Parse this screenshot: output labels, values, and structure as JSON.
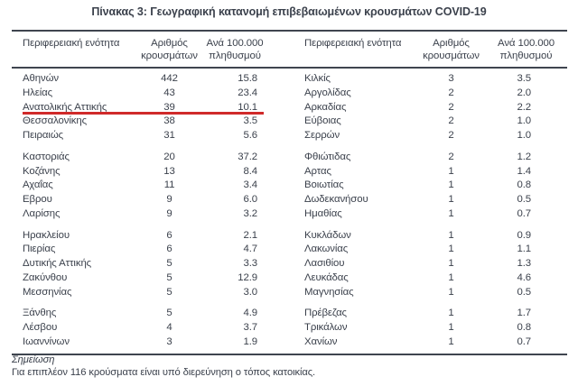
{
  "title": "Πίνακας 3: Γεωγραφική κατανομή επιβεβαιωμένων κρουσμάτων COVID-19",
  "table": {
    "headers": {
      "region": "Περιφερειακή ενότητα",
      "cases_line1": "Αριθμός",
      "cases_line2": "κρουσμάτων",
      "rate_line1": "Ανά 100.000",
      "rate_line2": "πληθυσμού"
    },
    "highlight": {
      "region": "Ανατολικής Αττικής",
      "color": "#d02a2a"
    },
    "row_groups": [
      {
        "left": [
          {
            "region": "Αθηνών",
            "cases": "442",
            "rate": "15.8"
          },
          {
            "region": "Ηλείας",
            "cases": "43",
            "rate": "23.4"
          },
          {
            "region": "Ανατολικής Αττικής",
            "cases": "39",
            "rate": "10.1"
          },
          {
            "region": "Θεσσαλονίκης",
            "cases": "38",
            "rate": "3.5"
          },
          {
            "region": "Πειραιώς",
            "cases": "31",
            "rate": "5.6"
          }
        ],
        "right": [
          {
            "region": "Κιλκίς",
            "cases": "3",
            "rate": "3.5"
          },
          {
            "region": "Αργολίδας",
            "cases": "2",
            "rate": "2.0"
          },
          {
            "region": "Αρκαδίας",
            "cases": "2",
            "rate": "2.2"
          },
          {
            "region": "Εύβοιας",
            "cases": "2",
            "rate": "1.0"
          },
          {
            "region": "Σερρών",
            "cases": "2",
            "rate": "1.0"
          }
        ]
      },
      {
        "left": [
          {
            "region": "Καστοριάς",
            "cases": "20",
            "rate": "37.2"
          },
          {
            "region": "Κοζάνης",
            "cases": "13",
            "rate": "8.4"
          },
          {
            "region": "Αχαΐας",
            "cases": "11",
            "rate": "3.4"
          },
          {
            "region": "Εβρου",
            "cases": "9",
            "rate": "6.0"
          },
          {
            "region": "Λαρίσης",
            "cases": "9",
            "rate": "3.2"
          }
        ],
        "right": [
          {
            "region": "Φθιώτιδας",
            "cases": "2",
            "rate": "1.2"
          },
          {
            "region": "Αρτας",
            "cases": "1",
            "rate": "1.4"
          },
          {
            "region": "Βοιωτίας",
            "cases": "1",
            "rate": "0.8"
          },
          {
            "region": "Δωδεκανήσου",
            "cases": "1",
            "rate": "0.5"
          },
          {
            "region": "Ημαθίας",
            "cases": "1",
            "rate": "0.7"
          }
        ]
      },
      {
        "left": [
          {
            "region": "Ηρακλείου",
            "cases": "6",
            "rate": "2.1"
          },
          {
            "region": "Πιερίας",
            "cases": "6",
            "rate": "4.7"
          },
          {
            "region": "Δυτικής Αττικής",
            "cases": "5",
            "rate": "3.3"
          },
          {
            "region": "Ζακύνθου",
            "cases": "5",
            "rate": "12.9"
          },
          {
            "region": "Μεσσηνίας",
            "cases": "5",
            "rate": "3.0"
          }
        ],
        "right": [
          {
            "region": "Κυκλάδων",
            "cases": "1",
            "rate": "0.9"
          },
          {
            "region": "Λακωνίας",
            "cases": "1",
            "rate": "1.1"
          },
          {
            "region": "Λασιθίου",
            "cases": "1",
            "rate": "1.3"
          },
          {
            "region": "Λευκάδας",
            "cases": "1",
            "rate": "4.6"
          },
          {
            "region": "Μαγνησίας",
            "cases": "1",
            "rate": "0.5"
          }
        ]
      },
      {
        "left": [
          {
            "region": "Ξάνθης",
            "cases": "5",
            "rate": "4.9"
          },
          {
            "region": "Λέσβου",
            "cases": "4",
            "rate": "3.7"
          },
          {
            "region": "Ιωαννίνων",
            "cases": "3",
            "rate": "1.9"
          }
        ],
        "right": [
          {
            "region": "Πρέβεζας",
            "cases": "1",
            "rate": "1.7"
          },
          {
            "region": "Τρικάλων",
            "cases": "1",
            "rate": "0.8"
          },
          {
            "region": "Χανίων",
            "cases": "1",
            "rate": "0.7"
          }
        ]
      }
    ]
  },
  "note": {
    "label": "Σημείωση",
    "text": "Για επιπλέον 116 κρούσματα είναι υπό διερεύνηση ο τόπος κατοικίας."
  }
}
